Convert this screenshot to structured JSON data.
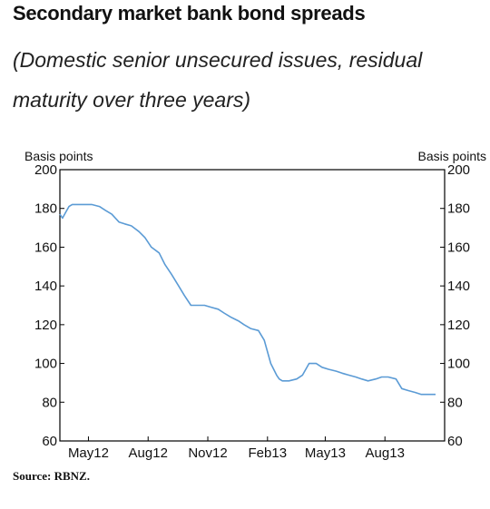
{
  "header": {
    "title": "Secondary market bank bond spreads",
    "subtitle": "(Domestic senior unsecured issues, residual maturity over three years)"
  },
  "footer": {
    "source": "Source: RBNZ."
  },
  "colors": {
    "line": "#5b9bd5",
    "axis": "#000000"
  },
  "chart_data": {
    "type": "line",
    "title": "Secondary market bank bond spreads",
    "subtitle": "(Domestic senior unsecured issues, residual maturity over three years)",
    "ylabel_left": "Basis points",
    "ylabel_right": "Basis points",
    "ylim": [
      60,
      200
    ],
    "y_ticks": [
      60,
      80,
      100,
      120,
      140,
      160,
      180,
      200
    ],
    "xlim": [
      "2012-04",
      "2013-11"
    ],
    "x_tick_labels": [
      "May12",
      "Aug12",
      "Nov12",
      "Feb13",
      "May13",
      "Aug13"
    ],
    "x_tick_positions": [
      "2012-05",
      "2012-08",
      "2012-11",
      "2013-02",
      "2013-05",
      "2013-08"
    ],
    "grid": false,
    "series": [
      {
        "x": [
          "2012-04-01",
          "2012-04-05",
          "2012-04-10",
          "2012-04-15",
          "2012-04-20",
          "2012-04-25",
          "2012-05-01",
          "2012-05-10",
          "2012-05-20",
          "2012-06-01",
          "2012-06-10",
          "2012-06-20",
          "2012-07-01",
          "2012-07-10",
          "2012-07-20",
          "2012-08-01",
          "2012-08-10",
          "2012-08-20",
          "2012-09-01",
          "2012-09-10",
          "2012-09-20",
          "2012-10-01",
          "2012-10-10",
          "2012-10-20",
          "2012-10-25",
          "2012-11-01",
          "2012-11-10",
          "2012-11-20",
          "2012-12-01",
          "2012-12-10",
          "2012-12-20",
          "2013-01-01",
          "2013-01-10",
          "2013-01-20",
          "2013-02-01",
          "2013-02-10",
          "2013-02-20",
          "2013-03-01",
          "2013-03-05",
          "2013-03-10",
          "2013-03-20",
          "2013-04-01",
          "2013-04-10",
          "2013-04-20",
          "2013-05-01",
          "2013-05-10",
          "2013-05-20",
          "2013-06-01",
          "2013-06-10",
          "2013-06-20",
          "2013-07-01",
          "2013-07-10",
          "2013-07-20",
          "2013-08-01",
          "2013-08-10",
          "2013-08-20",
          "2013-09-01",
          "2013-09-10",
          "2013-09-20",
          "2013-10-01",
          "2013-10-10",
          "2013-10-20",
          "2013-11-01"
        ],
        "values": [
          177,
          175,
          178,
          181,
          182,
          182,
          182,
          182,
          182,
          181,
          179,
          177,
          173,
          172,
          171,
          168,
          165,
          160,
          157,
          151,
          146,
          140,
          135,
          130,
          130,
          130,
          130,
          129,
          128,
          126,
          124,
          122,
          120,
          118,
          117,
          112,
          100,
          94,
          92,
          91,
          91,
          92,
          94,
          100,
          100,
          98,
          97,
          96,
          95,
          94,
          93,
          92,
          91,
          92,
          93,
          93,
          92,
          87,
          86,
          85,
          84,
          84,
          84
        ]
      }
    ]
  }
}
